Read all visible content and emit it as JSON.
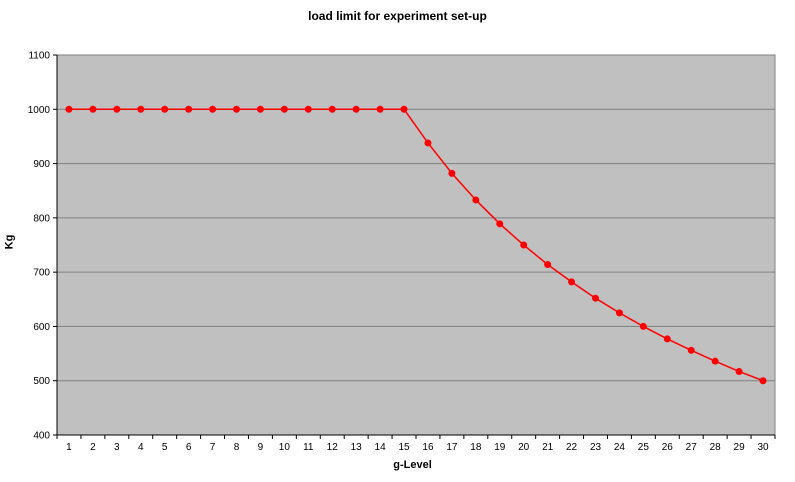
{
  "chart_data": {
    "type": "line",
    "title": "load limit for experiment set-up",
    "xlabel": "g-Level",
    "ylabel": "Kg",
    "x": [
      1,
      2,
      3,
      4,
      5,
      6,
      7,
      8,
      9,
      10,
      11,
      12,
      13,
      14,
      15,
      16,
      17,
      18,
      19,
      20,
      21,
      22,
      23,
      24,
      25,
      26,
      27,
      28,
      29,
      30
    ],
    "series": [
      {
        "values": [
          1000,
          1000,
          1000,
          1000,
          1000,
          1000,
          1000,
          1000,
          1000,
          1000,
          1000,
          1000,
          1000,
          1000,
          1000,
          938,
          882,
          833,
          789,
          750,
          714,
          682,
          652,
          625,
          600,
          577,
          556,
          536,
          517,
          500
        ]
      }
    ],
    "ylim": [
      400,
      1100
    ],
    "yticks": [
      400,
      500,
      600,
      700,
      800,
      900,
      1000,
      1100
    ],
    "grid": true,
    "legend": "none",
    "colors": {
      "plot_background": "#c0c0c0",
      "series": "#ff0000",
      "gridline": "#7f7f7f"
    }
  }
}
